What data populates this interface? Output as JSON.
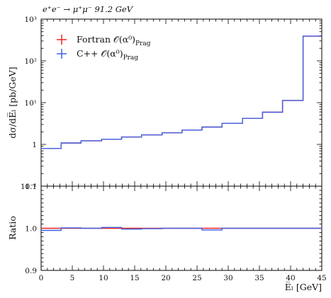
{
  "chart_data": {
    "type": "line",
    "title": "e⁺e⁻ → μ⁺μ⁻ 91.2 GeV",
    "xlabel": "E̅ₗ [GeV]",
    "x_tick_labels": [
      "0",
      "5",
      "10",
      "15",
      "20",
      "25",
      "30",
      "35",
      "40",
      "45"
    ],
    "xlim": [
      0,
      45
    ],
    "bin_edges": [
      0,
      3.2,
      6.4,
      9.7,
      12.9,
      16.1,
      19.4,
      22.6,
      25.8,
      29.0,
      32.3,
      35.5,
      38.7,
      42.0,
      45.0
    ],
    "main_panel": {
      "ylabel": "dσ/dE̅ₗ [pb/GeV]",
      "scale": "log",
      "ylim": [
        0.1,
        1000
      ],
      "y_tick_labels": [
        "10⁻¹",
        "1",
        "10¹",
        "10²",
        "10³"
      ],
      "series": [
        {
          "name": "Fortran 𝒪(α⁰)ₕₓₐₑ",
          "legend_label": "Fortran 𝒪(α⁰)",
          "legend_sub": "Prag",
          "color": "#ee2222",
          "values": [
            0.8,
            1.08,
            1.22,
            1.33,
            1.5,
            1.69,
            1.9,
            2.2,
            2.6,
            3.2,
            4.2,
            5.9,
            11.3,
            390
          ]
        },
        {
          "name": "C++ 𝒪(α⁰)ₕₓₐₑ",
          "legend_label": "C++ 𝒪(α⁰)",
          "legend_sub": "Prag",
          "color": "#3f63e6",
          "values": [
            0.8,
            1.08,
            1.22,
            1.33,
            1.5,
            1.69,
            1.9,
            2.2,
            2.6,
            3.2,
            4.2,
            5.9,
            11.3,
            390
          ]
        }
      ]
    },
    "ratio_panel": {
      "ylabel": "Ratio",
      "ylim": [
        0.9,
        1.1
      ],
      "y_tick_labels": [
        "0.9",
        "1.0",
        "1.1"
      ],
      "series": [
        {
          "color": "#ee2222",
          "values": [
            1.0,
            1.0,
            1.0,
            1.0,
            1.0,
            1.0,
            1.0,
            1.0,
            1.0,
            1.0,
            1.0,
            1.0,
            1.0,
            1.0
          ]
        },
        {
          "color": "#3f63e6",
          "values": [
            0.995,
            1.001,
            1.0,
            1.002,
            0.998,
            0.999,
            1.0,
            1.0,
            0.996,
            1.0,
            1.0,
            1.0,
            1.0,
            1.0
          ]
        }
      ]
    },
    "legend_position": "top-left",
    "grid": false
  }
}
